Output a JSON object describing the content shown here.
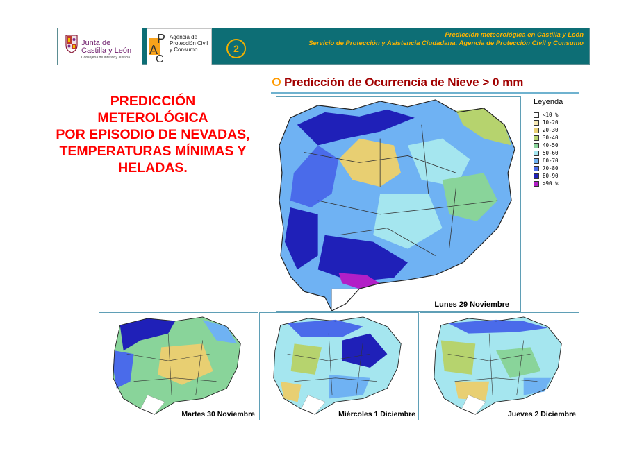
{
  "header": {
    "junta_line1": "Junta de",
    "junta_line2": "Castilla y León",
    "junta_sub": "Consejería de Interior y Justicia",
    "agencia_line1": "Agencia de",
    "agencia_line2": "Protección Civil",
    "agencia_line3": "y Consumo",
    "page_number": "2",
    "title": "Predicción meteorológica en Castilla y León",
    "subtitle": "Servicio de Protección y Asistencia Ciudadana. Agencia de Protección Civil y Consumo",
    "brand_color": "#0d6e75",
    "accent_color": "#ffb400"
  },
  "heading": {
    "lines": [
      "PREDICCIÓN",
      "METEROLÓGICA",
      "POR EPISODIO DE NEVADAS,",
      "TEMPERATURAS MÍNIMAS Y",
      "HELADAS."
    ]
  },
  "section_title": "Predicción de Ocurrencia de Nieve > 0 mm",
  "legend": {
    "title": "Leyenda",
    "items": [
      {
        "label": "<10  %",
        "color": "#ffffff"
      },
      {
        "label": "10-20",
        "color": "#f5e7b2"
      },
      {
        "label": "20-30",
        "color": "#e8cf72"
      },
      {
        "label": "30-40",
        "color": "#b6d36e"
      },
      {
        "label": "40-50",
        "color": "#89d49a"
      },
      {
        "label": "50-60",
        "color": "#a5e6ef"
      },
      {
        "label": "60-70",
        "color": "#6fb2f3"
      },
      {
        "label": "70-80",
        "color": "#4a6bea"
      },
      {
        "label": "80-90",
        "color": "#1f20b8"
      },
      {
        "label": ">90  %",
        "color": "#b21fc7"
      }
    ]
  },
  "maps": {
    "main_caption": "Lunes 29 Noviembre",
    "small": [
      {
        "caption": "Martes 30 Noviembre",
        "icon": "snow-map-tuesday"
      },
      {
        "caption": "Miércoles 1 Diciembre",
        "icon": "snow-map-wednesday"
      },
      {
        "caption": "Jueves 2 Diciembre",
        "icon": "snow-map-thursday"
      }
    ]
  }
}
